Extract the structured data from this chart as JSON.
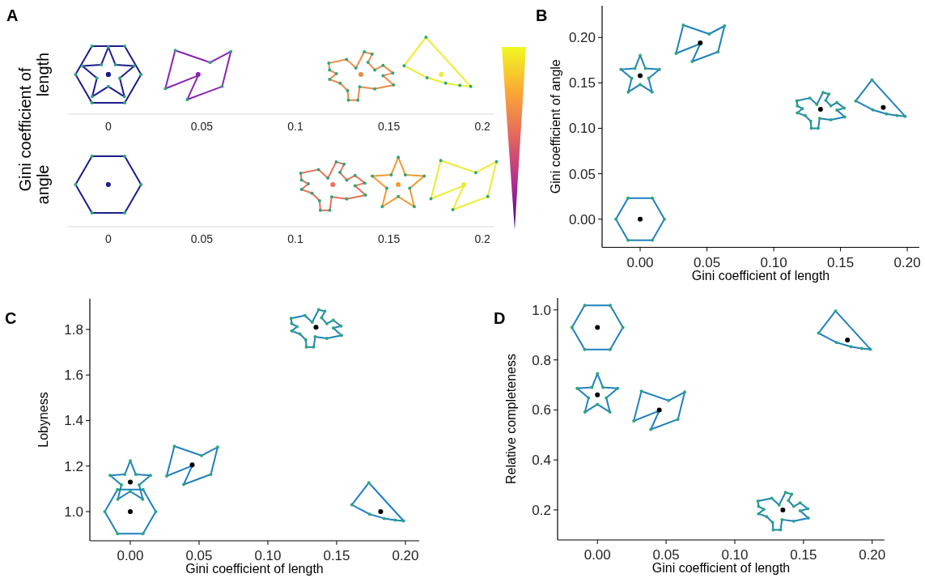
{
  "chart_data": [
    {
      "type": "scatter",
      "orientation": "horizontal",
      "title": "A",
      "ylabel": "Gini coefficient of",
      "categories": [
        "length",
        "angle"
      ],
      "series": [
        {
          "values": [
            0,
            0
          ],
          "colors": [
            "#1c1c8c",
            "#1c1c8c"
          ]
        },
        {
          "values": [
            0,
            0.155
          ],
          "colors": [
            "#1c1c8c",
            "#f39a30"
          ]
        },
        {
          "values": [
            0.048,
            0.19
          ],
          "colors": [
            "#8b22b3",
            "#ecec2c"
          ]
        },
        {
          "values": [
            0.135,
            0.12
          ],
          "colors": [
            "#f08a45",
            "#e8705a"
          ]
        },
        {
          "values": [
            0.178,
            null
          ],
          "colors": [
            "#ecec2c",
            null
          ]
        }
      ],
      "marker": "circle",
      "xlim": [
        -0.022,
        0.206
      ],
      "xticks": [
        0,
        0.05,
        0.1,
        0.15,
        0.2
      ],
      "x2lim": [
        -0.022,
        0.206
      ],
      "x2ticks": [
        0,
        0.05,
        0.1,
        0.15,
        0.2
      ]
    },
    {
      "type": "scatter",
      "title": "B",
      "xlabel": "Gini coefficient of length",
      "ylabel": "Gini coefficient of angle",
      "x": [
        0,
        0,
        0.045,
        0.135,
        0.182
      ],
      "values": [
        0,
        0.158,
        0.194,
        0.121,
        0.123
      ],
      "color": "#000000",
      "marker": "circle",
      "xlim": [
        -0.0285,
        0.209
      ],
      "ylim": [
        -0.031,
        0.235
      ],
      "xticks": [
        {
          "value": 0,
          "label": "0.00"
        },
        0.05,
        {
          "value": 0.1,
          "label": "0.10"
        },
        0.15,
        {
          "value": 0.2,
          "label": "0.20"
        }
      ],
      "yticks": [
        {
          "value": 0,
          "label": "0.00"
        },
        0.05,
        {
          "value": 0.1,
          "label": "0.10"
        },
        0.15,
        {
          "value": 0.2,
          "label": "0.20"
        }
      ]
    },
    {
      "type": "scatter",
      "title": "C",
      "xlabel": "Gini coefficient of length",
      "ylabel": "Lobyness",
      "x": [
        0,
        0,
        0.045,
        0.135,
        0.182
      ],
      "values": [
        1.0,
        1.13,
        1.205,
        1.81,
        1.0
      ],
      "color": "#000000",
      "marker": "circle",
      "xlim": [
        -0.0294,
        0.21
      ],
      "ylim": [
        0.872,
        1.935
      ],
      "xticks": [
        {
          "value": 0,
          "label": "0.00"
        },
        0.05,
        {
          "value": 0.1,
          "label": "0.10"
        },
        0.15,
        {
          "value": 0.2,
          "label": "0.20"
        }
      ],
      "yticks": [
        {
          "value": 1,
          "label": "1.0"
        },
        1.2,
        1.4,
        1.6,
        1.8
      ]
    },
    {
      "type": "scatter",
      "title": "D",
      "xlabel": "Gini coefficient of length",
      "ylabel": "Relative completeness",
      "x": [
        0,
        0,
        0.045,
        0.135,
        0.182
      ],
      "values": [
        0.93,
        0.66,
        0.6,
        0.2,
        0.88
      ],
      "color": "#000000",
      "marker": "circle",
      "xlim": [
        -0.029,
        0.209
      ],
      "ylim": [
        0.08,
        1.048
      ],
      "xticks": [
        {
          "value": 0,
          "label": "0.00"
        },
        0.05,
        {
          "value": 0.1,
          "label": "0.10"
        },
        0.15,
        {
          "value": 0.2,
          "label": "0.20"
        }
      ],
      "yticks": [
        0.2,
        0.4,
        0.6,
        0.8,
        {
          "value": 1,
          "label": "1.0"
        }
      ]
    }
  ]
}
